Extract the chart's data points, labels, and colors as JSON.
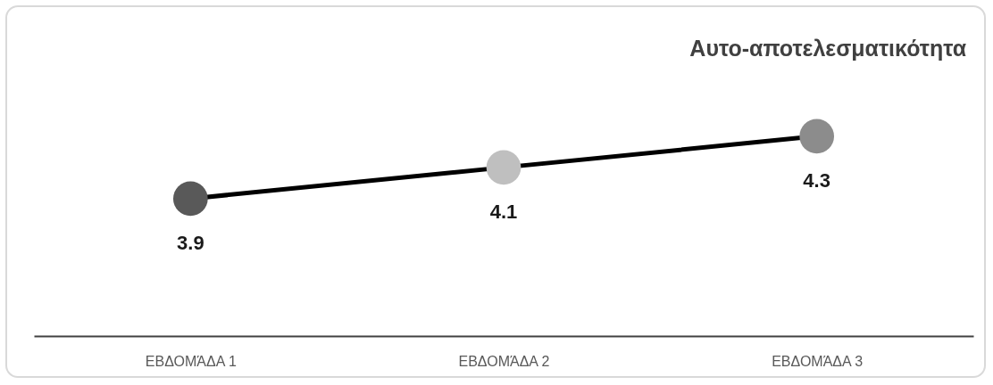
{
  "chart_data": {
    "type": "line",
    "title": "Αυτο-αποτελεσματικότητα",
    "categories": [
      "ΕΒΔΟΜΆΔΑ 1",
      "ΕΒΔΟΜΆΔΑ 2",
      "ΕΒΔΟΜΆΔΑ 3"
    ],
    "values": [
      3.9,
      4.1,
      4.3
    ],
    "color": "#000000",
    "colors": [
      "#595959",
      "#bfbfbf",
      "#8c8c8c"
    ],
    "marker": "circle",
    "data_labels": true
  }
}
